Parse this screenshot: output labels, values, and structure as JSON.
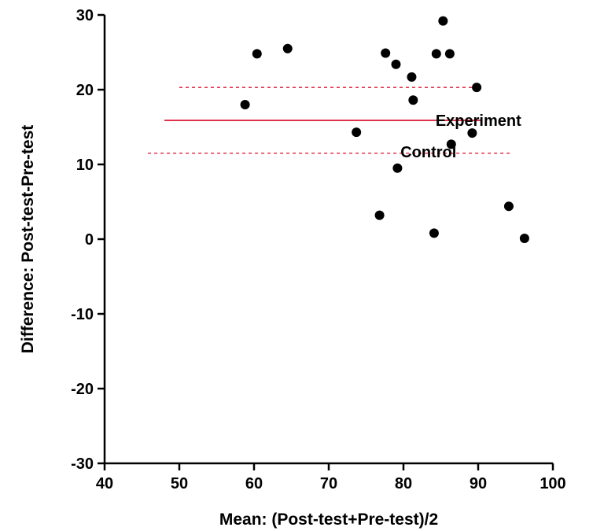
{
  "chart_data": {
    "type": "scatter",
    "title": "",
    "xlabel": "Mean: (Post-test+Pre-test)/2",
    "ylabel": "Difference: Post-test-Pre-test",
    "xlim": [
      40,
      100
    ],
    "ylim": [
      -30,
      30
    ],
    "xticks": [
      "40",
      "50",
      "60",
      "70",
      "80",
      "90",
      "100"
    ],
    "yticks": [
      "30",
      "20",
      "10",
      "0",
      "-10",
      "-20",
      "-30"
    ],
    "grid": false,
    "points": [
      {
        "x": 58.8,
        "y": 18.0
      },
      {
        "x": 60.4,
        "y": 24.8
      },
      {
        "x": 64.5,
        "y": 25.5
      },
      {
        "x": 73.7,
        "y": 14.3
      },
      {
        "x": 76.8,
        "y": 3.2
      },
      {
        "x": 77.6,
        "y": 24.9
      },
      {
        "x": 79.0,
        "y": 23.4
      },
      {
        "x": 79.2,
        "y": 9.5
      },
      {
        "x": 81.1,
        "y": 21.7
      },
      {
        "x": 81.3,
        "y": 18.6
      },
      {
        "x": 84.1,
        "y": 0.8
      },
      {
        "x": 84.4,
        "y": 24.8
      },
      {
        "x": 85.3,
        "y": 29.2
      },
      {
        "x": 86.2,
        "y": 24.8
      },
      {
        "x": 86.4,
        "y": 12.7
      },
      {
        "x": 89.2,
        "y": 14.2
      },
      {
        "x": 89.8,
        "y": 20.3
      },
      {
        "x": 94.1,
        "y": 4.4
      },
      {
        "x": 96.2,
        "y": 0.1
      }
    ],
    "reference_lines": [
      {
        "style": "solid",
        "color": "#e0344c",
        "y": 15.9,
        "x_start": 48.0,
        "x_end": 90.5
      },
      {
        "style": "dashed",
        "color": "#e0344c",
        "y": 20.3,
        "x_start": 50.0,
        "x_end": 90.0
      },
      {
        "style": "dashed",
        "color": "#e0344c",
        "y": 11.5,
        "x_start": 45.8,
        "x_end": 94.5
      }
    ],
    "annotations": [
      {
        "text": "Experiment",
        "x": 84.3,
        "y": 15.9
      },
      {
        "text": "Control",
        "x": 79.6,
        "y": 11.7
      }
    ],
    "colors": {
      "points": "#000000",
      "lines": "#e0344c"
    }
  }
}
